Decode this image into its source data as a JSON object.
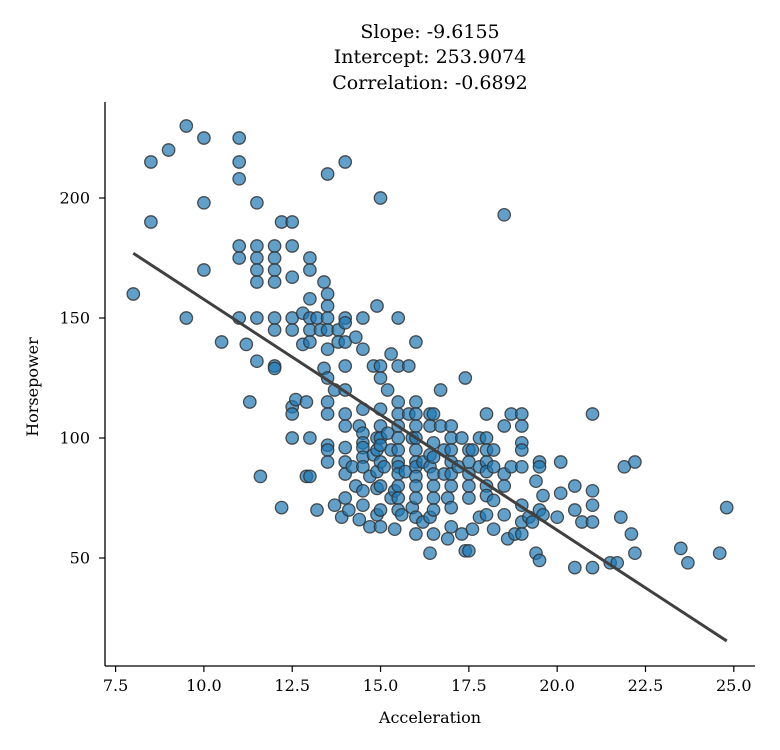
{
  "chart_data": {
    "type": "scatter",
    "title_lines": [
      "Slope: -9.6155",
      "Intercept: 253.9074",
      "Correlation: -0.6892"
    ],
    "xlabel": "Acceleration",
    "ylabel": "Horsepower",
    "xlim": [
      7.2,
      25.6
    ],
    "ylim": [
      5,
      240
    ],
    "xticks": [
      "7.5",
      "10.0",
      "12.5",
      "15.0",
      "17.5",
      "20.0",
      "22.5",
      "25.0"
    ],
    "yticks": [
      "50",
      "100",
      "150",
      "200"
    ],
    "grid": false,
    "point_color": "#1f77b4",
    "line_color": "#404040",
    "fit_line": {
      "slope": -9.6155,
      "intercept": 253.9074,
      "x_range": [
        8.0,
        24.8
      ]
    },
    "points": [
      [
        8.0,
        160
      ],
      [
        8.5,
        190
      ],
      [
        8.5,
        215
      ],
      [
        9.0,
        220
      ],
      [
        9.5,
        230
      ],
      [
        9.5,
        150
      ],
      [
        10.0,
        225
      ],
      [
        10.0,
        198
      ],
      [
        10.0,
        170
      ],
      [
        10.5,
        140
      ],
      [
        11.0,
        225
      ],
      [
        11.0,
        215
      ],
      [
        11.0,
        208
      ],
      [
        11.0,
        180
      ],
      [
        11.0,
        175
      ],
      [
        11.0,
        150
      ],
      [
        11.2,
        139
      ],
      [
        11.3,
        115
      ],
      [
        11.5,
        198
      ],
      [
        11.5,
        180
      ],
      [
        11.5,
        175
      ],
      [
        11.5,
        170
      ],
      [
        11.5,
        165
      ],
      [
        11.5,
        150
      ],
      [
        11.5,
        132
      ],
      [
        11.6,
        84
      ],
      [
        12.0,
        180
      ],
      [
        12.0,
        175
      ],
      [
        12.0,
        170
      ],
      [
        12.0,
        165
      ],
      [
        12.0,
        150
      ],
      [
        12.0,
        145
      ],
      [
        12.0,
        130
      ],
      [
        12.0,
        129
      ],
      [
        12.2,
        190
      ],
      [
        12.2,
        71
      ],
      [
        12.5,
        190
      ],
      [
        12.5,
        180
      ],
      [
        12.5,
        167
      ],
      [
        12.5,
        150
      ],
      [
        12.5,
        145
      ],
      [
        12.5,
        113
      ],
      [
        12.5,
        110
      ],
      [
        12.5,
        100
      ],
      [
        12.6,
        116
      ],
      [
        12.8,
        152
      ],
      [
        12.8,
        139
      ],
      [
        12.9,
        115
      ],
      [
        12.9,
        84
      ],
      [
        13.0,
        175
      ],
      [
        13.0,
        170
      ],
      [
        13.0,
        158
      ],
      [
        13.0,
        150
      ],
      [
        13.0,
        145
      ],
      [
        13.0,
        140
      ],
      [
        13.0,
        100
      ],
      [
        13.0,
        84
      ],
      [
        13.2,
        150
      ],
      [
        13.2,
        70
      ],
      [
        13.3,
        145
      ],
      [
        13.4,
        165
      ],
      [
        13.4,
        129
      ],
      [
        13.5,
        210
      ],
      [
        13.5,
        160
      ],
      [
        13.5,
        155
      ],
      [
        13.5,
        150
      ],
      [
        13.5,
        145
      ],
      [
        13.5,
        137
      ],
      [
        13.5,
        125
      ],
      [
        13.5,
        115
      ],
      [
        13.5,
        110
      ],
      [
        13.5,
        97
      ],
      [
        13.5,
        95
      ],
      [
        13.5,
        90
      ],
      [
        13.7,
        120
      ],
      [
        13.7,
        72
      ],
      [
        13.8,
        145
      ],
      [
        13.8,
        140
      ],
      [
        13.9,
        67
      ],
      [
        14.0,
        215
      ],
      [
        14.0,
        150
      ],
      [
        14.0,
        148
      ],
      [
        14.0,
        140
      ],
      [
        14.0,
        130
      ],
      [
        14.0,
        120
      ],
      [
        14.0,
        110
      ],
      [
        14.0,
        105
      ],
      [
        14.0,
        96
      ],
      [
        14.0,
        90
      ],
      [
        14.0,
        85
      ],
      [
        14.0,
        75
      ],
      [
        14.1,
        70
      ],
      [
        14.2,
        88
      ],
      [
        14.3,
        142
      ],
      [
        14.3,
        80
      ],
      [
        14.4,
        105
      ],
      [
        14.4,
        66
      ],
      [
        14.5,
        150
      ],
      [
        14.5,
        137
      ],
      [
        14.5,
        112
      ],
      [
        14.5,
        102
      ],
      [
        14.5,
        98
      ],
      [
        14.5,
        96
      ],
      [
        14.5,
        92
      ],
      [
        14.5,
        88
      ],
      [
        14.5,
        78
      ],
      [
        14.5,
        72
      ],
      [
        14.7,
        84
      ],
      [
        14.7,
        63
      ],
      [
        14.8,
        130
      ],
      [
        14.8,
        93
      ],
      [
        14.9,
        155
      ],
      [
        14.9,
        100
      ],
      [
        14.9,
        95
      ],
      [
        14.9,
        86
      ],
      [
        14.9,
        79
      ],
      [
        14.9,
        68
      ],
      [
        15.0,
        200
      ],
      [
        15.0,
        130
      ],
      [
        15.0,
        125
      ],
      [
        15.0,
        112
      ],
      [
        15.0,
        105
      ],
      [
        15.0,
        100
      ],
      [
        15.0,
        97
      ],
      [
        15.0,
        90
      ],
      [
        15.0,
        80
      ],
      [
        15.0,
        70
      ],
      [
        15.0,
        63
      ],
      [
        15.1,
        88
      ],
      [
        15.2,
        120
      ],
      [
        15.2,
        102
      ],
      [
        15.3,
        135
      ],
      [
        15.3,
        95
      ],
      [
        15.3,
        75
      ],
      [
        15.4,
        78
      ],
      [
        15.4,
        62
      ],
      [
        15.5,
        150
      ],
      [
        15.5,
        130
      ],
      [
        15.5,
        115
      ],
      [
        15.5,
        110
      ],
      [
        15.5,
        105
      ],
      [
        15.5,
        100
      ],
      [
        15.5,
        95
      ],
      [
        15.5,
        90
      ],
      [
        15.5,
        88
      ],
      [
        15.5,
        85
      ],
      [
        15.5,
        80
      ],
      [
        15.5,
        75
      ],
      [
        15.5,
        70
      ],
      [
        15.6,
        68
      ],
      [
        15.7,
        86
      ],
      [
        15.8,
        130
      ],
      [
        15.8,
        110
      ],
      [
        15.9,
        100
      ],
      [
        15.9,
        71
      ],
      [
        16.0,
        140
      ],
      [
        16.0,
        115
      ],
      [
        16.0,
        110
      ],
      [
        16.0,
        105
      ],
      [
        16.0,
        100
      ],
      [
        16.0,
        95
      ],
      [
        16.0,
        90
      ],
      [
        16.0,
        88
      ],
      [
        16.0,
        84
      ],
      [
        16.0,
        80
      ],
      [
        16.0,
        75
      ],
      [
        16.0,
        67
      ],
      [
        16.0,
        60
      ],
      [
        16.2,
        90
      ],
      [
        16.2,
        65
      ],
      [
        16.4,
        110
      ],
      [
        16.4,
        105
      ],
      [
        16.4,
        93
      ],
      [
        16.4,
        88
      ],
      [
        16.4,
        67
      ],
      [
        16.4,
        52
      ],
      [
        16.5,
        110
      ],
      [
        16.5,
        98
      ],
      [
        16.5,
        92
      ],
      [
        16.5,
        85
      ],
      [
        16.5,
        80
      ],
      [
        16.5,
        75
      ],
      [
        16.5,
        70
      ],
      [
        16.5,
        60
      ],
      [
        16.7,
        120
      ],
      [
        16.7,
        105
      ],
      [
        16.8,
        95
      ],
      [
        16.8,
        85
      ],
      [
        16.9,
        75
      ],
      [
        16.9,
        58
      ],
      [
        17.0,
        105
      ],
      [
        17.0,
        100
      ],
      [
        17.0,
        95
      ],
      [
        17.0,
        90
      ],
      [
        17.0,
        85
      ],
      [
        17.0,
        80
      ],
      [
        17.0,
        71
      ],
      [
        17.0,
        63
      ],
      [
        17.2,
        88
      ],
      [
        17.3,
        100
      ],
      [
        17.3,
        60
      ],
      [
        17.4,
        125
      ],
      [
        17.4,
        53
      ],
      [
        17.5,
        95
      ],
      [
        17.5,
        90
      ],
      [
        17.5,
        85
      ],
      [
        17.5,
        80
      ],
      [
        17.5,
        75
      ],
      [
        17.5,
        53
      ],
      [
        17.6,
        95
      ],
      [
        17.6,
        62
      ],
      [
        17.8,
        100
      ],
      [
        17.8,
        88
      ],
      [
        17.8,
        67
      ],
      [
        18.0,
        110
      ],
      [
        18.0,
        100
      ],
      [
        18.0,
        95
      ],
      [
        18.0,
        90
      ],
      [
        18.0,
        86
      ],
      [
        18.0,
        80
      ],
      [
        18.0,
        76
      ],
      [
        18.0,
        68
      ],
      [
        18.2,
        95
      ],
      [
        18.2,
        88
      ],
      [
        18.2,
        74
      ],
      [
        18.2,
        62
      ],
      [
        18.5,
        193
      ],
      [
        18.5,
        105
      ],
      [
        18.5,
        85
      ],
      [
        18.5,
        80
      ],
      [
        18.5,
        68
      ],
      [
        18.6,
        58
      ],
      [
        18.7,
        110
      ],
      [
        18.7,
        88
      ],
      [
        18.8,
        60
      ],
      [
        19.0,
        110
      ],
      [
        19.0,
        105
      ],
      [
        19.0,
        98
      ],
      [
        19.0,
        95
      ],
      [
        19.0,
        88
      ],
      [
        19.0,
        72
      ],
      [
        19.0,
        65
      ],
      [
        19.0,
        60
      ],
      [
        19.2,
        67
      ],
      [
        19.3,
        65
      ],
      [
        19.4,
        52
      ],
      [
        19.4,
        82
      ],
      [
        19.5,
        90
      ],
      [
        19.5,
        88
      ],
      [
        19.5,
        70
      ],
      [
        19.5,
        49
      ],
      [
        19.6,
        76
      ],
      [
        19.6,
        68
      ],
      [
        20.0,
        67
      ],
      [
        20.1,
        90
      ],
      [
        20.1,
        77
      ],
      [
        20.5,
        80
      ],
      [
        20.5,
        70
      ],
      [
        20.5,
        46
      ],
      [
        20.7,
        65
      ],
      [
        21.0,
        110
      ],
      [
        21.0,
        78
      ],
      [
        21.0,
        72
      ],
      [
        21.0,
        65
      ],
      [
        21.0,
        46
      ],
      [
        21.5,
        48
      ],
      [
        21.7,
        48
      ],
      [
        21.8,
        67
      ],
      [
        21.9,
        88
      ],
      [
        22.1,
        60
      ],
      [
        22.2,
        90
      ],
      [
        22.2,
        52
      ],
      [
        23.5,
        54
      ],
      [
        23.7,
        48
      ],
      [
        24.6,
        52
      ],
      [
        24.8,
        71
      ]
    ]
  }
}
